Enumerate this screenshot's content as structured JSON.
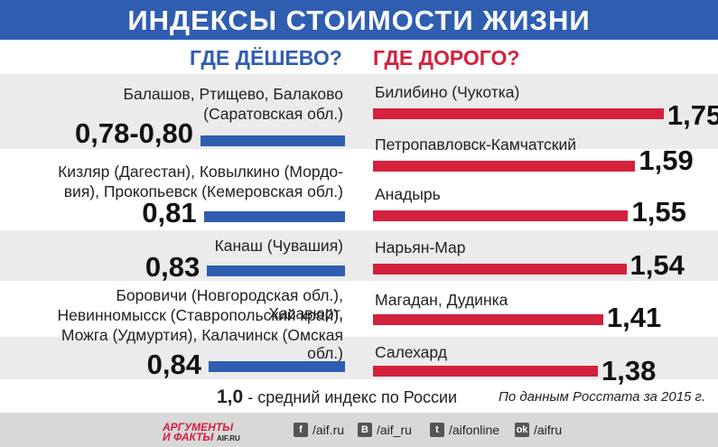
{
  "title": "ИНДЕКСЫ СТОИМОСТИ ЖИЗНИ",
  "left_header": "ГДЕ ДЁШЕВО?",
  "right_header": "ГДЕ ДОРОГО?",
  "footnote_value": "1,0",
  "footnote_text": " - средний индекс по России",
  "source": "По данным Росстата за 2015 г.",
  "footer": {
    "logo_line1": "АРГУМЕНТЫ",
    "logo_line2": "И ФАКТЫ",
    "logo_site": "AIF.RU",
    "links": [
      "/aif.ru",
      "/aif_ru",
      "/aifonline",
      "/aifru"
    ],
    "icons": [
      "facebook-icon",
      "vk-icon",
      "twitter-icon",
      "odnoklassniki-icon"
    ]
  },
  "colors": {
    "blue": "#2f5db0",
    "red": "#d4213d",
    "band": "#ebebeb"
  },
  "chart_data": [
    {
      "type": "bar",
      "title": "ГДЕ ДЁШЕВО?",
      "categories": [
        "Балашов, Ртищево, Балаково (Саратовская обл.)",
        "Кизляр (Дагестан), Ковылкино (Мордовия), Прокопьевск (Кемеровская обл.)",
        "Канаш (Чувашия)",
        "Боровичи (Новгородская обл.), Хасавюрт, Невинномысск (Ставропольский край), Можга (Удмуртия), Калачинск (Омская обл.)"
      ],
      "label_lines": [
        [
          "Балашов, Ртищево, Балаково",
          "(Саратовская обл.)"
        ],
        [
          "Кизляр (Дагестан), Ковылкино (Мордо-",
          "вия), Прокопьевск (Кемеровская обл.)"
        ],
        [
          "Канаш (Чувашия)"
        ],
        [
          "Боровичи (Новгородская обл.), Хасавюрт,",
          "Невинномысск (Ставропольский край),",
          "Можга (Удмуртия), Калачинск (Омская обл.)"
        ]
      ],
      "value_labels": [
        "0,78-0,80",
        "0,81",
        "0,83",
        "0,84"
      ],
      "values": [
        0.79,
        0.81,
        0.83,
        0.84
      ]
    },
    {
      "type": "bar",
      "title": "ГДЕ ДОРОГО?",
      "categories": [
        "Билибино (Чукотка)",
        "Петропавловск-Камчатский",
        "Анадырь",
        "Нарьян-Мар",
        "Магадан, Дудинка",
        "Салехард"
      ],
      "value_labels": [
        "1,75",
        "1,59",
        "1,55",
        "1,54",
        "1,41",
        "1,38"
      ],
      "values": [
        1.75,
        1.59,
        1.55,
        1.54,
        1.41,
        1.38
      ]
    }
  ]
}
